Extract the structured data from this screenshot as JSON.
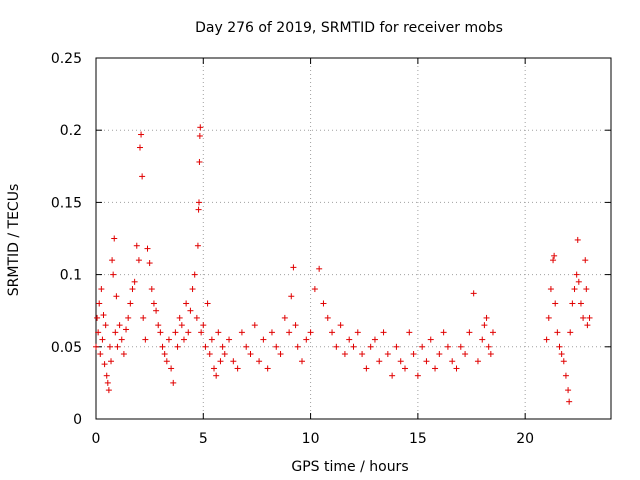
{
  "chart_data": {
    "type": "scatter",
    "title": "Day 276 of 2019, SRMTID for receiver mobs",
    "xlabel": "GPS time / hours",
    "ylabel": "SRMTID / TECUs",
    "xlim": [
      0,
      24
    ],
    "ylim": [
      0,
      0.25
    ],
    "xticks": [
      0,
      5,
      10,
      15,
      20
    ],
    "xtick_labels": [
      "0",
      "5",
      "10",
      "15",
      "20"
    ],
    "yticks": [
      0,
      0.05,
      0.1,
      0.15,
      0.2,
      0.25
    ],
    "ytick_labels": [
      "0",
      "0.05",
      "0.1",
      "0.15",
      "0.2",
      "0.25"
    ],
    "grid": true,
    "marker": "+",
    "color": "#e00000",
    "series": [
      {
        "name": "SRMTID",
        "points": [
          [
            0.0,
            0.05
          ],
          [
            0.05,
            0.07
          ],
          [
            0.1,
            0.06
          ],
          [
            0.15,
            0.08
          ],
          [
            0.2,
            0.045
          ],
          [
            0.25,
            0.09
          ],
          [
            0.3,
            0.055
          ],
          [
            0.35,
            0.072
          ],
          [
            0.4,
            0.038
          ],
          [
            0.45,
            0.065
          ],
          [
            0.5,
            0.03
          ],
          [
            0.55,
            0.025
          ],
          [
            0.6,
            0.02
          ],
          [
            0.65,
            0.05
          ],
          [
            0.7,
            0.04
          ],
          [
            0.75,
            0.11
          ],
          [
            0.8,
            0.1
          ],
          [
            0.85,
            0.125
          ],
          [
            0.9,
            0.06
          ],
          [
            0.95,
            0.085
          ],
          [
            1.0,
            0.05
          ],
          [
            1.1,
            0.065
          ],
          [
            1.2,
            0.055
          ],
          [
            1.3,
            0.045
          ],
          [
            1.4,
            0.062
          ],
          [
            1.5,
            0.07
          ],
          [
            1.6,
            0.08
          ],
          [
            1.7,
            0.09
          ],
          [
            1.8,
            0.095
          ],
          [
            1.9,
            0.12
          ],
          [
            2.0,
            0.11
          ],
          [
            2.05,
            0.188
          ],
          [
            2.1,
            0.197
          ],
          [
            2.15,
            0.168
          ],
          [
            2.2,
            0.07
          ],
          [
            2.3,
            0.055
          ],
          [
            2.4,
            0.118
          ],
          [
            2.5,
            0.108
          ],
          [
            2.6,
            0.09
          ],
          [
            2.7,
            0.08
          ],
          [
            2.8,
            0.075
          ],
          [
            2.9,
            0.065
          ],
          [
            3.0,
            0.06
          ],
          [
            3.1,
            0.05
          ],
          [
            3.2,
            0.045
          ],
          [
            3.3,
            0.04
          ],
          [
            3.4,
            0.055
          ],
          [
            3.5,
            0.035
          ],
          [
            3.6,
            0.025
          ],
          [
            3.7,
            0.06
          ],
          [
            3.8,
            0.05
          ],
          [
            3.9,
            0.07
          ],
          [
            4.0,
            0.065
          ],
          [
            4.1,
            0.055
          ],
          [
            4.2,
            0.08
          ],
          [
            4.3,
            0.06
          ],
          [
            4.4,
            0.075
          ],
          [
            4.5,
            0.09
          ],
          [
            4.6,
            0.1
          ],
          [
            4.7,
            0.07
          ],
          [
            4.75,
            0.12
          ],
          [
            4.78,
            0.145
          ],
          [
            4.8,
            0.15
          ],
          [
            4.82,
            0.178
          ],
          [
            4.84,
            0.196
          ],
          [
            4.86,
            0.202
          ],
          [
            4.9,
            0.06
          ],
          [
            5.0,
            0.065
          ],
          [
            5.1,
            0.05
          ],
          [
            5.2,
            0.08
          ],
          [
            5.3,
            0.045
          ],
          [
            5.4,
            0.055
          ],
          [
            5.5,
            0.035
          ],
          [
            5.6,
            0.03
          ],
          [
            5.7,
            0.06
          ],
          [
            5.8,
            0.04
          ],
          [
            5.9,
            0.05
          ],
          [
            6.0,
            0.045
          ],
          [
            6.2,
            0.055
          ],
          [
            6.4,
            0.04
          ],
          [
            6.6,
            0.035
          ],
          [
            6.8,
            0.06
          ],
          [
            7.0,
            0.05
          ],
          [
            7.2,
            0.045
          ],
          [
            7.4,
            0.065
          ],
          [
            7.6,
            0.04
          ],
          [
            7.8,
            0.055
          ],
          [
            8.0,
            0.035
          ],
          [
            8.2,
            0.06
          ],
          [
            8.4,
            0.05
          ],
          [
            8.6,
            0.045
          ],
          [
            8.8,
            0.07
          ],
          [
            9.0,
            0.06
          ],
          [
            9.1,
            0.085
          ],
          [
            9.2,
            0.105
          ],
          [
            9.3,
            0.065
          ],
          [
            9.4,
            0.05
          ],
          [
            9.6,
            0.04
          ],
          [
            9.8,
            0.055
          ],
          [
            10.0,
            0.06
          ],
          [
            10.2,
            0.09
          ],
          [
            10.4,
            0.104
          ],
          [
            10.6,
            0.08
          ],
          [
            10.8,
            0.07
          ],
          [
            11.0,
            0.06
          ],
          [
            11.2,
            0.05
          ],
          [
            11.4,
            0.065
          ],
          [
            11.6,
            0.045
          ],
          [
            11.8,
            0.055
          ],
          [
            12.0,
            0.05
          ],
          [
            12.2,
            0.06
          ],
          [
            12.4,
            0.045
          ],
          [
            12.6,
            0.035
          ],
          [
            12.8,
            0.05
          ],
          [
            13.0,
            0.055
          ],
          [
            13.2,
            0.04
          ],
          [
            13.4,
            0.06
          ],
          [
            13.6,
            0.045
          ],
          [
            13.8,
            0.03
          ],
          [
            14.0,
            0.05
          ],
          [
            14.2,
            0.04
          ],
          [
            14.4,
            0.035
          ],
          [
            14.6,
            0.06
          ],
          [
            14.8,
            0.045
          ],
          [
            15.0,
            0.03
          ],
          [
            15.2,
            0.05
          ],
          [
            15.4,
            0.04
          ],
          [
            15.6,
            0.055
          ],
          [
            15.8,
            0.035
          ],
          [
            16.0,
            0.045
          ],
          [
            16.2,
            0.06
          ],
          [
            16.4,
            0.05
          ],
          [
            16.6,
            0.04
          ],
          [
            16.8,
            0.035
          ],
          [
            17.0,
            0.05
          ],
          [
            17.2,
            0.045
          ],
          [
            17.4,
            0.06
          ],
          [
            17.6,
            0.087
          ],
          [
            17.8,
            0.04
          ],
          [
            18.0,
            0.055
          ],
          [
            18.1,
            0.065
          ],
          [
            18.2,
            0.07
          ],
          [
            18.3,
            0.05
          ],
          [
            18.4,
            0.045
          ],
          [
            18.5,
            0.06
          ],
          [
            21.0,
            0.055
          ],
          [
            21.1,
            0.07
          ],
          [
            21.2,
            0.09
          ],
          [
            21.3,
            0.11
          ],
          [
            21.35,
            0.113
          ],
          [
            21.4,
            0.08
          ],
          [
            21.5,
            0.06
          ],
          [
            21.6,
            0.05
          ],
          [
            21.7,
            0.045
          ],
          [
            21.8,
            0.04
          ],
          [
            21.9,
            0.03
          ],
          [
            22.0,
            0.02
          ],
          [
            22.05,
            0.012
          ],
          [
            22.1,
            0.06
          ],
          [
            22.2,
            0.08
          ],
          [
            22.3,
            0.09
          ],
          [
            22.4,
            0.1
          ],
          [
            22.45,
            0.124
          ],
          [
            22.5,
            0.095
          ],
          [
            22.6,
            0.08
          ],
          [
            22.7,
            0.07
          ],
          [
            22.8,
            0.11
          ],
          [
            22.85,
            0.09
          ],
          [
            22.9,
            0.065
          ],
          [
            23.0,
            0.07
          ]
        ]
      }
    ]
  }
}
